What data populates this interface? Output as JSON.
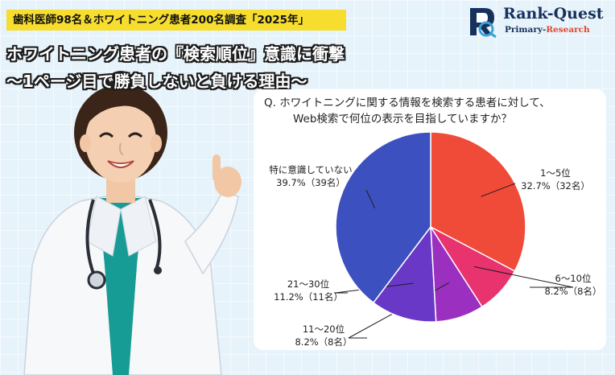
{
  "header": {
    "survey_tag": "歯科医師98名＆ホワイトニング患者200名調査「2025年」",
    "headline_line1": "ホワイトニング患者の『検索順位』意識に衝撃",
    "headline_line2": "〜1ページ目で勝負しないと負ける理由〜"
  },
  "logo": {
    "name": "Rank-Quest",
    "sub_primary": "Primary-",
    "sub_research": "Research"
  },
  "question": {
    "line1": "Q.  ホワイトニングに関する情報を検索する患者に対して、",
    "line2": "Web検索で何位の表示を目指していますか？"
  },
  "chart_data": {
    "type": "pie",
    "slices": [
      {
        "name": "1〜5位",
        "percent": 32.7,
        "count": 32,
        "value_label": "32.7%（32名）",
        "color": "#f04a38"
      },
      {
        "name": "6〜10位",
        "percent": 8.2,
        "count": 8,
        "value_label": "8.2%（8名）",
        "color": "#e8336e"
      },
      {
        "name": "11〜20位",
        "percent": 8.2,
        "count": 8,
        "value_label": "8.2%（8名）",
        "color": "#9b2fc0"
      },
      {
        "name": "21〜30位",
        "percent": 11.2,
        "count": 11,
        "value_label": "11.2%（11名）",
        "color": "#6a38c6"
      },
      {
        "name": "特に意識していない",
        "percent": 39.7,
        "count": 39,
        "value_label": "39.7%（39名）",
        "color": "#3d50bf"
      }
    ]
  },
  "colors": {
    "tag_yellow": "#f6dd2e",
    "background": "#e6f3fb",
    "logo_navy": "#17305c",
    "logo_accent": "#e4462d"
  },
  "icons": {
    "logo_mark": "rq-logo-mark-icon",
    "doctor": "doctor-illustration"
  }
}
